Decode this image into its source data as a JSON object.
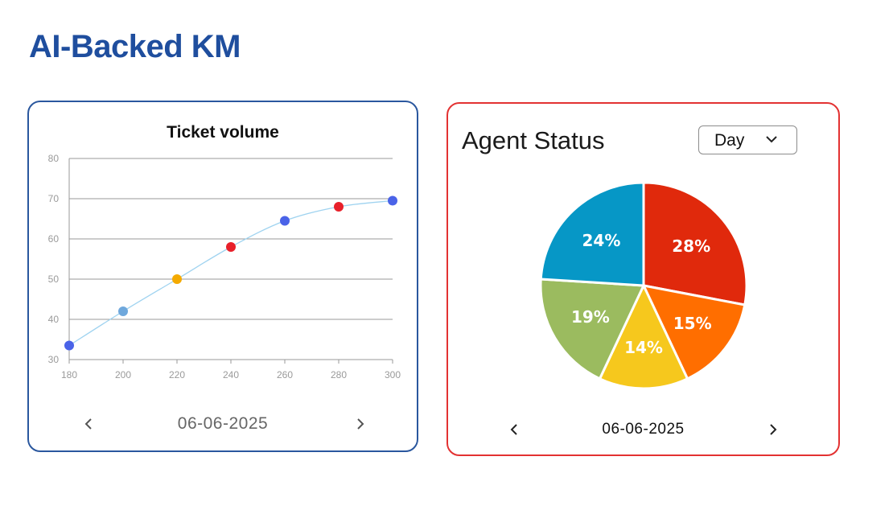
{
  "page": {
    "title": "AI-Backed KM"
  },
  "ticket_card": {
    "title": "Ticket volume",
    "date": "06-06-2025",
    "prev_icon": "chevron-left-icon",
    "next_icon": "chevron-right-icon"
  },
  "agent_card": {
    "title": "Agent Status",
    "period": {
      "selected": "Day",
      "icon": "chevron-down-icon"
    },
    "date": "06-06-2025",
    "prev_icon": "chevron-left-icon",
    "next_icon": "chevron-right-icon"
  },
  "chart_data": [
    {
      "type": "line",
      "title": "Ticket volume",
      "x": [
        180,
        200,
        220,
        240,
        260,
        280,
        300
      ],
      "series": [
        {
          "values": [
            33.5,
            42,
            50,
            58,
            64.5,
            68,
            69.5
          ]
        }
      ],
      "point_colors": [
        "#4a63e8",
        "#6fa8dc",
        "#f4aa00",
        "#e8202a",
        "#4a63e8",
        "#e8202a",
        "#4a63e8"
      ],
      "line_color": "#9fd3f0",
      "xlim": [
        180,
        300
      ],
      "ylim": [
        30,
        80
      ],
      "xticks": [
        180,
        200,
        220,
        240,
        260,
        280,
        300
      ],
      "yticks": [
        30,
        40,
        50,
        60,
        70,
        80
      ],
      "grid": true
    },
    {
      "type": "pie",
      "slices": [
        {
          "label": "28%",
          "value": 28,
          "color": "#e0290c"
        },
        {
          "label": "15%",
          "value": 15,
          "color": "#ff6e00"
        },
        {
          "label": "14%",
          "value": 14,
          "color": "#f6c81d"
        },
        {
          "label": "19%",
          "value": 19,
          "color": "#9bbb5f"
        },
        {
          "label": "24%",
          "value": 24,
          "color": "#0697c6"
        }
      ]
    }
  ]
}
